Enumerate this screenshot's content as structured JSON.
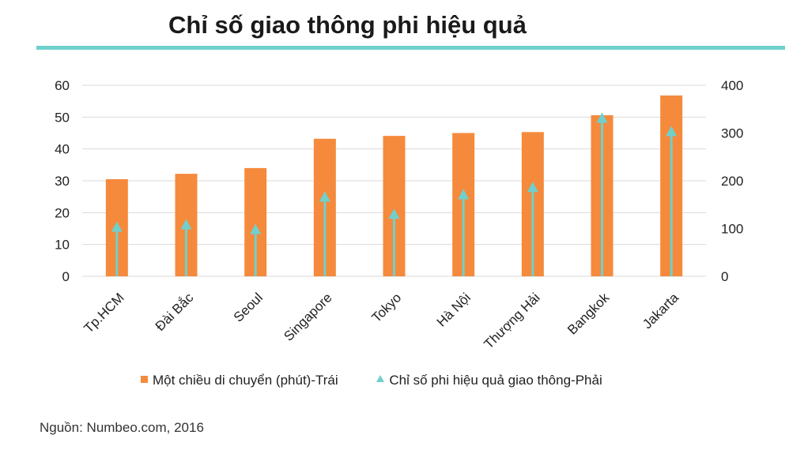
{
  "title": "Chỉ số giao thông phi hiệu quả",
  "source": "Nguồn: Numbeo.com, 2016",
  "colors": {
    "bar": "#f58a3c",
    "indicator": "#6fd0cc",
    "grid": "#d9d9d9",
    "rule": "#6fd0cc"
  },
  "chart_data": {
    "type": "bar",
    "categories": [
      "Tp.HCM",
      "Đài Bắc",
      "Seoul",
      "Singapore",
      "Tokyo",
      "Hà Nội",
      "Thượng Hải",
      "Bangkok",
      "Jakarta"
    ],
    "series": [
      {
        "name": "Một chiều di chuyển (phút)-Trái",
        "type": "bar",
        "axis": "left",
        "values": [
          30.5,
          32.2,
          34.0,
          43.2,
          44.1,
          45.0,
          45.3,
          50.6,
          56.8
        ]
      },
      {
        "name": "Chỉ số phi hiệu quả giao thông-Phải",
        "type": "marker-triangle",
        "axis": "right",
        "values": [
          105,
          110,
          100,
          168,
          132,
          173,
          188,
          333,
          305
        ]
      }
    ],
    "y_left": {
      "min": 0,
      "max": 60,
      "ticks": [
        0,
        10,
        20,
        30,
        40,
        50,
        60
      ]
    },
    "y_right": {
      "min": 0,
      "max": 400,
      "ticks": [
        0,
        100,
        200,
        300,
        400
      ]
    },
    "grid": true,
    "legend_position": "bottom"
  }
}
